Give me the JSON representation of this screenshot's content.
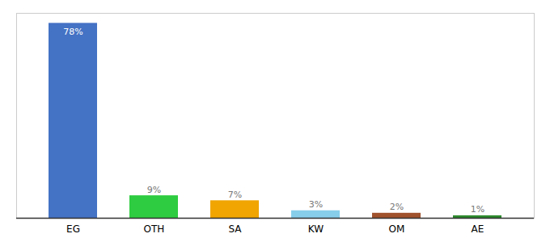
{
  "chart_data": {
    "type": "bar",
    "categories": [
      "EG",
      "OTH",
      "SA",
      "KW",
      "OM",
      "AE"
    ],
    "values": [
      78,
      9,
      7,
      3,
      2,
      1
    ],
    "value_labels": [
      "78%",
      "9%",
      "7%",
      "3%",
      "2%",
      "1%"
    ],
    "colors": [
      "#4472c4",
      "#2ecc40",
      "#f0a500",
      "#87ceeb",
      "#a0522d",
      "#2d8a2d"
    ],
    "ylim": [
      0,
      82
    ],
    "grid": false,
    "data_labels": true,
    "tick_labels": "x"
  }
}
